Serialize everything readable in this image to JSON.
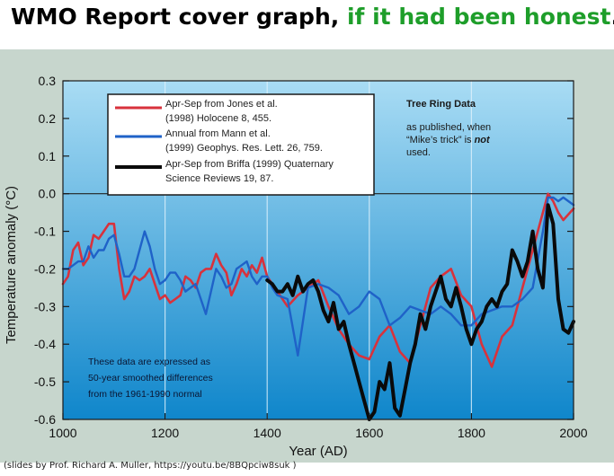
{
  "slide": {
    "title_main": "WMO Report cover graph, ",
    "title_highlight": "if it had been honest",
    "title_end": ".",
    "credit": "(slides by Prof. Richard A. Muller,  https://youtu.be/8BQpciw8suk )"
  },
  "colors": {
    "panel_bg": "#c7d6cd",
    "plot_top": "#a9dcf4",
    "plot_bottom": "#0f86cb",
    "red": "#d8323c",
    "blue": "#1f62c8",
    "black": "#0a0a0a",
    "highlight": "#1e9e2a"
  },
  "chart_data": {
    "type": "line",
    "xlabel": "Year (AD)",
    "ylabel": "Temperature anomaly (°C)",
    "xlim": [
      1000,
      2000
    ],
    "ylim": [
      -0.6,
      0.3
    ],
    "xticks": [
      1000,
      1200,
      1400,
      1600,
      1800,
      2000
    ],
    "yticks": [
      0.3,
      0.2,
      0.1,
      0.0,
      -0.1,
      -0.2,
      -0.3,
      -0.4,
      -0.5,
      -0.6
    ],
    "ytick_labels": [
      "0.3",
      "0.2",
      "0.1",
      "0.0",
      "-0.1",
      "-0.2",
      "-0.3",
      "-0.4",
      "-0.5",
      "-0.6"
    ],
    "grid": "vertical",
    "legend_position": "top-left",
    "legend": [
      {
        "line1": "Apr-Sep from Jones et al.",
        "line2": "(1998) Holocene 8, 455.",
        "color": "red"
      },
      {
        "line1": "Annual from Mann et al.",
        "line2": "(1999) Geophys. Res. Lett. 26, 759.",
        "color": "blue"
      },
      {
        "line1": "Apr-Sep from Briffa (1999) Quaternary",
        "line2": "Science Reviews 19, 87.",
        "color": "black"
      }
    ],
    "annotation_top_right": {
      "title": "Tree Ring Data",
      "line1": "as published, when",
      "line2_pre": "“Mike’s trick” is ",
      "line2_em": "not",
      "line3": "used."
    },
    "annotation_bottom_left": {
      "line1": "These data are expressed as",
      "line2": "50-year smoothed differences",
      "line3": "from the 1961-1990 normal"
    },
    "series": [
      {
        "name": "Apr-Sep from Jones et al. (1998) Holocene 8, 455.",
        "color": "red",
        "x": [
          1000,
          1010,
          1020,
          1030,
          1040,
          1050,
          1060,
          1070,
          1080,
          1090,
          1100,
          1110,
          1120,
          1130,
          1140,
          1150,
          1160,
          1170,
          1180,
          1190,
          1200,
          1210,
          1220,
          1230,
          1240,
          1250,
          1260,
          1270,
          1280,
          1290,
          1300,
          1310,
          1320,
          1330,
          1340,
          1350,
          1360,
          1370,
          1380,
          1390,
          1400,
          1410,
          1420,
          1440,
          1460,
          1480,
          1500,
          1520,
          1540,
          1560,
          1580,
          1600,
          1620,
          1640,
          1660,
          1680,
          1700,
          1720,
          1740,
          1760,
          1780,
          1800,
          1820,
          1840,
          1860,
          1880,
          1900,
          1920,
          1940,
          1950,
          1960,
          1970,
          1980,
          2000
        ],
        "y": [
          -0.24,
          -0.22,
          -0.15,
          -0.13,
          -0.19,
          -0.17,
          -0.11,
          -0.12,
          -0.1,
          -0.08,
          -0.08,
          -0.2,
          -0.28,
          -0.26,
          -0.22,
          -0.23,
          -0.22,
          -0.2,
          -0.24,
          -0.28,
          -0.27,
          -0.29,
          -0.28,
          -0.27,
          -0.22,
          -0.23,
          -0.25,
          -0.21,
          -0.2,
          -0.2,
          -0.16,
          -0.19,
          -0.21,
          -0.27,
          -0.24,
          -0.2,
          -0.22,
          -0.19,
          -0.21,
          -0.17,
          -0.22,
          -0.24,
          -0.26,
          -0.3,
          -0.27,
          -0.25,
          -0.23,
          -0.3,
          -0.36,
          -0.4,
          -0.43,
          -0.44,
          -0.38,
          -0.35,
          -0.42,
          -0.45,
          -0.35,
          -0.25,
          -0.22,
          -0.2,
          -0.27,
          -0.3,
          -0.4,
          -0.46,
          -0.38,
          -0.35,
          -0.25,
          -0.15,
          -0.05,
          0.0,
          -0.02,
          -0.05,
          -0.07,
          -0.04
        ]
      },
      {
        "name": "Annual from Mann et al. (1999) Geophys. Res. Lett. 26, 759.",
        "color": "blue",
        "x": [
          1000,
          1010,
          1020,
          1030,
          1040,
          1050,
          1060,
          1070,
          1080,
          1090,
          1100,
          1110,
          1120,
          1130,
          1140,
          1150,
          1160,
          1170,
          1180,
          1190,
          1200,
          1210,
          1220,
          1230,
          1240,
          1250,
          1260,
          1270,
          1280,
          1290,
          1300,
          1310,
          1320,
          1330,
          1340,
          1350,
          1360,
          1370,
          1380,
          1390,
          1400,
          1410,
          1420,
          1440,
          1460,
          1480,
          1500,
          1520,
          1540,
          1560,
          1580,
          1600,
          1620,
          1640,
          1660,
          1680,
          1700,
          1720,
          1740,
          1760,
          1780,
          1800,
          1820,
          1840,
          1860,
          1880,
          1900,
          1920,
          1940,
          1950,
          1960,
          1970,
          1980,
          2000
        ],
        "y": [
          -0.2,
          -0.2,
          -0.19,
          -0.18,
          -0.18,
          -0.14,
          -0.17,
          -0.15,
          -0.15,
          -0.12,
          -0.11,
          -0.16,
          -0.22,
          -0.22,
          -0.2,
          -0.15,
          -0.1,
          -0.14,
          -0.2,
          -0.24,
          -0.23,
          -0.21,
          -0.21,
          -0.23,
          -0.26,
          -0.25,
          -0.24,
          -0.28,
          -0.32,
          -0.26,
          -0.2,
          -0.22,
          -0.25,
          -0.24,
          -0.2,
          -0.19,
          -0.18,
          -0.22,
          -0.24,
          -0.22,
          -0.22,
          -0.25,
          -0.27,
          -0.28,
          -0.43,
          -0.25,
          -0.24,
          -0.25,
          -0.27,
          -0.32,
          -0.3,
          -0.26,
          -0.28,
          -0.35,
          -0.33,
          -0.3,
          -0.31,
          -0.32,
          -0.3,
          -0.32,
          -0.35,
          -0.35,
          -0.32,
          -0.31,
          -0.3,
          -0.3,
          -0.28,
          -0.25,
          -0.1,
          -0.01,
          -0.01,
          -0.02,
          -0.01,
          -0.03
        ]
      },
      {
        "name": "Apr-Sep from Briffa (1999) Quaternary Science Reviews 19, 87.",
        "color": "black",
        "x": [
          1400,
          1410,
          1420,
          1430,
          1440,
          1450,
          1460,
          1470,
          1480,
          1490,
          1500,
          1510,
          1520,
          1530,
          1540,
          1550,
          1560,
          1570,
          1580,
          1590,
          1600,
          1610,
          1620,
          1630,
          1640,
          1650,
          1660,
          1670,
          1680,
          1690,
          1700,
          1710,
          1720,
          1730,
          1740,
          1750,
          1760,
          1770,
          1780,
          1790,
          1800,
          1810,
          1820,
          1830,
          1840,
          1850,
          1860,
          1870,
          1880,
          1890,
          1900,
          1910,
          1920,
          1930,
          1940,
          1950,
          1960,
          1970,
          1980,
          1990,
          2000
        ],
        "y": [
          -0.23,
          -0.24,
          -0.26,
          -0.26,
          -0.24,
          -0.27,
          -0.22,
          -0.26,
          -0.24,
          -0.23,
          -0.26,
          -0.31,
          -0.34,
          -0.29,
          -0.36,
          -0.34,
          -0.4,
          -0.45,
          -0.5,
          -0.55,
          -0.6,
          -0.58,
          -0.5,
          -0.52,
          -0.45,
          -0.57,
          -0.59,
          -0.52,
          -0.45,
          -0.4,
          -0.32,
          -0.36,
          -0.3,
          -0.26,
          -0.22,
          -0.28,
          -0.3,
          -0.25,
          -0.3,
          -0.36,
          -0.4,
          -0.36,
          -0.34,
          -0.3,
          -0.28,
          -0.3,
          -0.26,
          -0.24,
          -0.15,
          -0.18,
          -0.22,
          -0.18,
          -0.1,
          -0.2,
          -0.25,
          -0.03,
          -0.08,
          -0.28,
          -0.36,
          -0.37,
          -0.34
        ]
      }
    ]
  }
}
